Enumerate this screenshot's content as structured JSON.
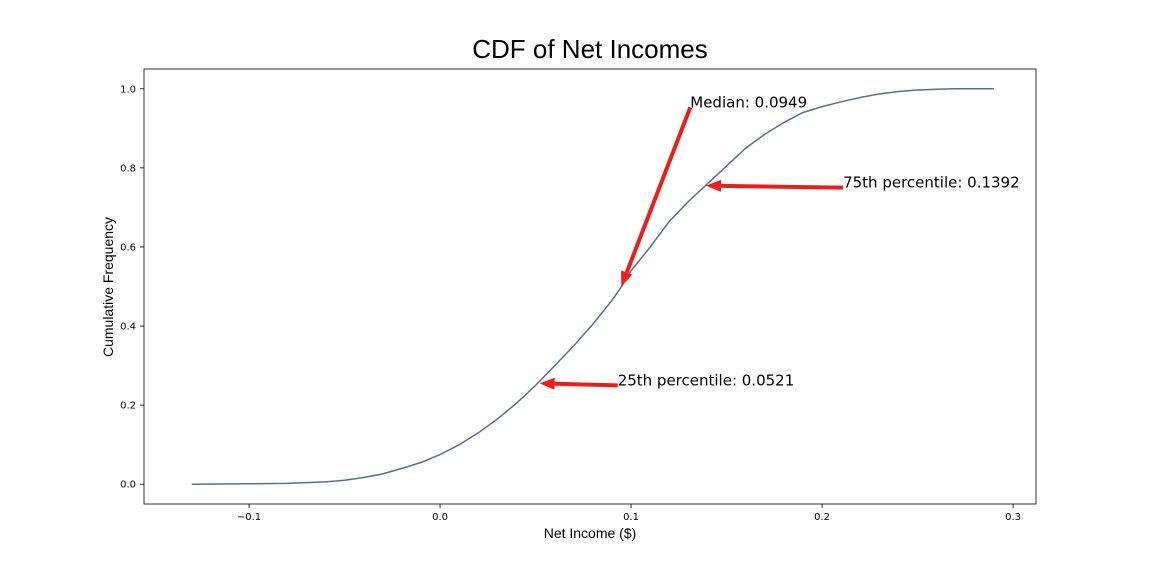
{
  "chart_data": {
    "type": "line",
    "title": "CDF of Net Incomes",
    "xlabel": "Net Income ($)",
    "ylabel": "Cumulative Frequency",
    "xlim": [
      -0.155,
      0.312
    ],
    "ylim": [
      -0.05,
      1.05
    ],
    "xticks": [
      -0.1,
      0.0,
      0.1,
      0.2,
      0.3
    ],
    "xtick_labels": [
      "−0.1",
      "0.0",
      "0.1",
      "0.2",
      "0.3"
    ],
    "yticks": [
      0.0,
      0.2,
      0.4,
      0.6,
      0.8,
      1.0
    ],
    "ytick_labels": [
      "0.0",
      "0.2",
      "0.4",
      "0.6",
      "0.8",
      "1.0"
    ],
    "grid": false,
    "line_color": "#5a6f8c",
    "arrow_color": "#ee1c1c",
    "series": [
      {
        "x": [
          -0.13,
          -0.1,
          -0.08,
          -0.07,
          -0.06,
          -0.05,
          -0.04,
          -0.03,
          -0.02,
          -0.01,
          0.0,
          0.01,
          0.02,
          0.03,
          0.04,
          0.05,
          0.06,
          0.07,
          0.08,
          0.09,
          0.095,
          0.1,
          0.11,
          0.12,
          0.13,
          0.14,
          0.15,
          0.16,
          0.17,
          0.18,
          0.19,
          0.2,
          0.21,
          0.22,
          0.23,
          0.24,
          0.25,
          0.26,
          0.27,
          0.28,
          0.29
        ],
        "y": [
          0.0,
          0.001,
          0.002,
          0.004,
          0.006,
          0.01,
          0.017,
          0.026,
          0.04,
          0.055,
          0.075,
          0.1,
          0.13,
          0.165,
          0.205,
          0.25,
          0.3,
          0.35,
          0.405,
          0.465,
          0.5,
          0.54,
          0.6,
          0.665,
          0.715,
          0.76,
          0.805,
          0.85,
          0.885,
          0.915,
          0.94,
          0.955,
          0.967,
          0.978,
          0.987,
          0.993,
          0.997,
          0.999,
          1.0,
          1.0,
          1.0
        ]
      }
    ],
    "annotations": [
      {
        "text": "Median: 0.0949",
        "point": [
          0.0949,
          0.5
        ],
        "text_pos": [
          0.131,
          0.953
        ]
      },
      {
        "text": "75th percentile: 0.1392",
        "point": [
          0.1392,
          0.755
        ],
        "text_pos": [
          0.211,
          0.75
        ]
      },
      {
        "text": "25th percentile: 0.0521",
        "point": [
          0.0521,
          0.255
        ],
        "text_pos": [
          0.093,
          0.25
        ]
      }
    ]
  }
}
